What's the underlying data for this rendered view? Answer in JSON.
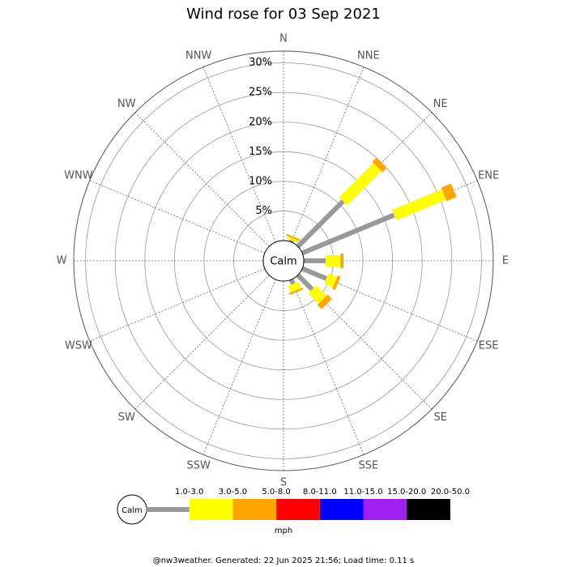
{
  "chart_data": {
    "type": "wind-rose",
    "title": "Wind rose for 03 Sep 2021",
    "directions": [
      "N",
      "NNE",
      "NE",
      "ENE",
      "E",
      "ESE",
      "SE",
      "SSE",
      "S",
      "SSW",
      "SW",
      "WSW",
      "W",
      "WNW",
      "NW",
      "NNW"
    ],
    "center_label": "Calm",
    "rlim": [
      0,
      32
    ],
    "rticks": [
      {
        "value": 5,
        "label": "5%"
      },
      {
        "value": 10,
        "label": "10%"
      },
      {
        "value": 15,
        "label": "15%"
      },
      {
        "value": 20,
        "label": "20%"
      },
      {
        "value": 25,
        "label": "25%"
      },
      {
        "value": 30,
        "label": "30%"
      }
    ],
    "series": [
      {
        "name": "1.0-3.0",
        "color": "#999999",
        "values": [
          0,
          0.3,
          10.8,
          16.8,
          3.7,
          4.4,
          3.4,
          0.8,
          0,
          0,
          0,
          0,
          0,
          0,
          0,
          0
        ]
      },
      {
        "name": "3.0-5.0",
        "color": "#ffff00",
        "values": [
          0,
          0.4,
          8.2,
          9.1,
          2.5,
          1.6,
          2.5,
          1.2,
          0,
          0,
          0,
          0,
          0,
          0,
          0,
          0
        ]
      },
      {
        "name": "5.0-8.0",
        "color": "#ffa500",
        "values": [
          0,
          0.3,
          1.0,
          1.8,
          0.5,
          0.5,
          1.0,
          0.3,
          0,
          0,
          0,
          0,
          0,
          0,
          0,
          0
        ]
      },
      {
        "name": "8.0-11.0",
        "color": "#ff0000",
        "values": [
          0,
          0,
          0,
          0,
          0,
          0,
          0,
          0,
          0,
          0,
          0,
          0,
          0,
          0,
          0,
          0
        ]
      },
      {
        "name": "11.0-15.0",
        "color": "#0000ff",
        "values": [
          0,
          0,
          0,
          0,
          0,
          0,
          0,
          0,
          0,
          0,
          0,
          0,
          0,
          0,
          0,
          0
        ]
      },
      {
        "name": "15.0-20.0",
        "color": "#a020f0",
        "values": [
          0,
          0,
          0,
          0,
          0,
          0,
          0,
          0,
          0,
          0,
          0,
          0,
          0,
          0,
          0,
          0
        ]
      },
      {
        "name": "20.0-50.0",
        "color": "#000000",
        "values": [
          0,
          0,
          0,
          0,
          0,
          0,
          0,
          0,
          0,
          0,
          0,
          0,
          0,
          0,
          0,
          0
        ]
      }
    ],
    "legend_calm": "Calm",
    "unit": "mph",
    "footer": "@nw3weather. Generated: 22 Jun 2025 21:56; Load time: 0.11 s"
  }
}
